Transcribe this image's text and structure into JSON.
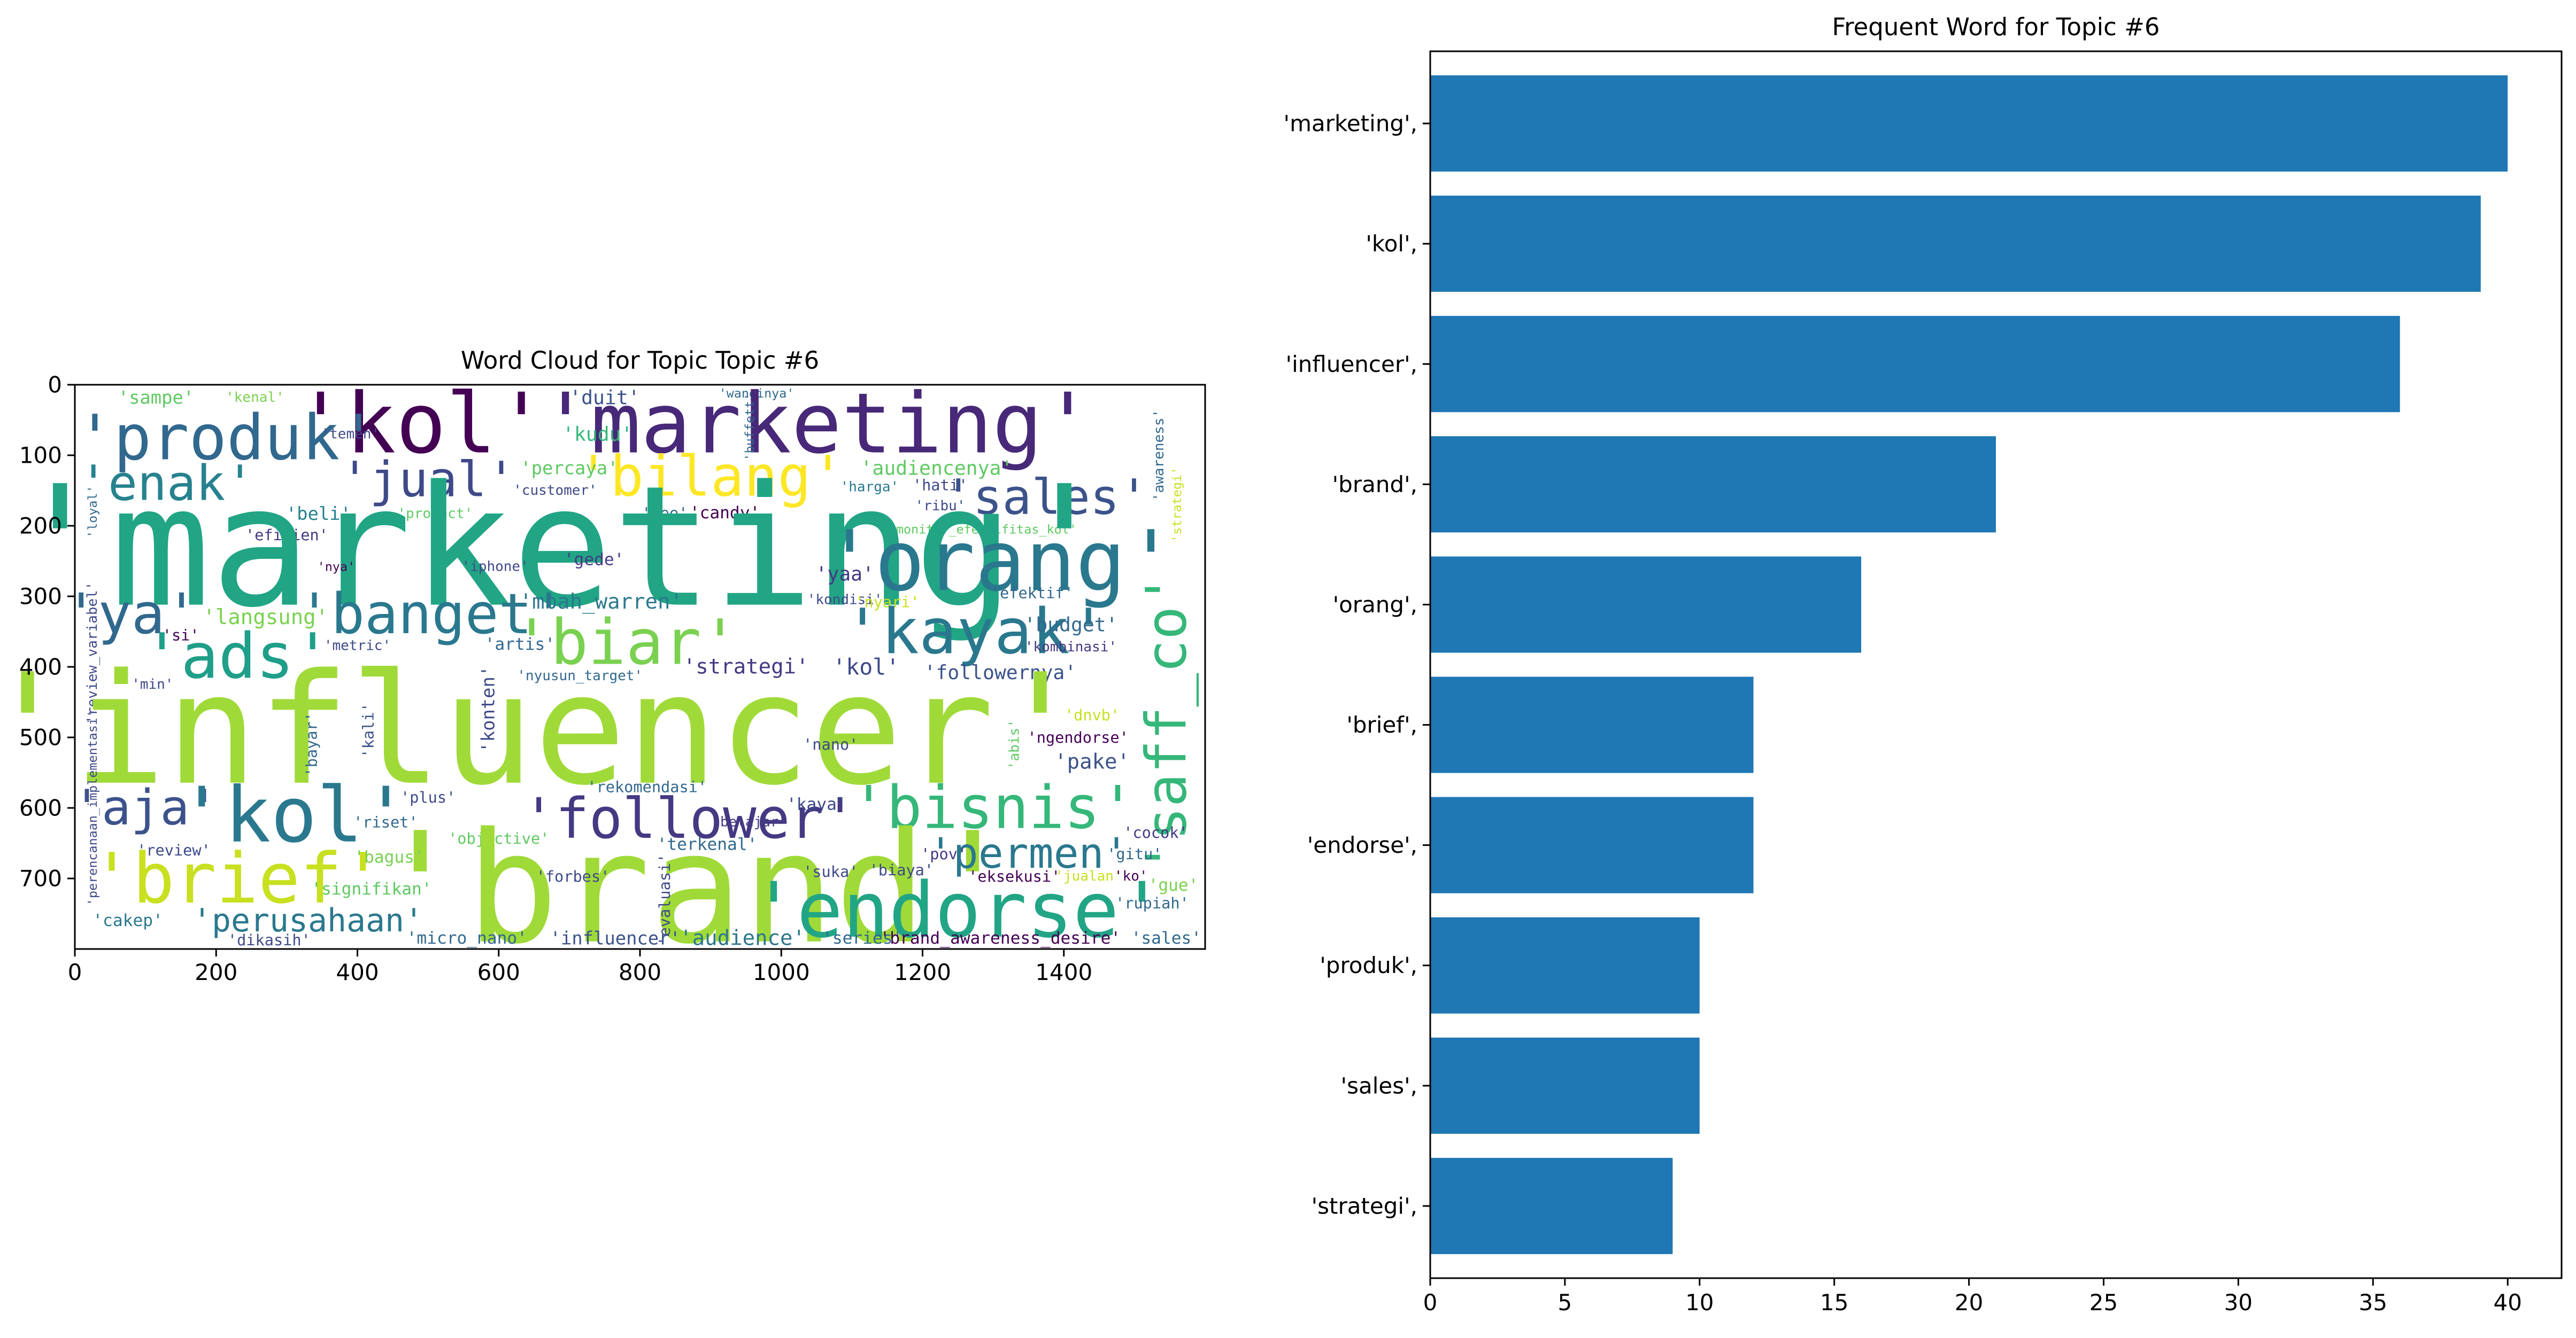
{
  "chart_data": [
    {
      "type": "image",
      "title": "Word Cloud for Topic Topic #6",
      "x_ticks": [
        0,
        200,
        400,
        600,
        800,
        1000,
        1200,
        1400
      ],
      "y_ticks": [
        0,
        100,
        200,
        300,
        400,
        500,
        600,
        700
      ],
      "xlim": [
        0,
        1600
      ],
      "ylim": [
        800,
        0
      ],
      "words": [
        {
          "text": "'sampe'",
          "x": 115,
          "y": 18,
          "size": 26,
          "color": "#5ec962",
          "rot": 0
        },
        {
          "text": "'kenal'",
          "x": 255,
          "y": 18,
          "size": 20,
          "color": "#7ad151",
          "rot": 0
        },
        {
          "text": "'duit'",
          "x": 750,
          "y": 18,
          "size": 28,
          "color": "#3b528b",
          "rot": 0
        },
        {
          "text": "'wanginya'",
          "x": 965,
          "y": 12,
          "size": 18,
          "color": "#31688e",
          "rot": 0
        },
        {
          "text": "'kol'",
          "x": 490,
          "y": 55,
          "size": 120,
          "color": "#440154",
          "rot": 0
        },
        {
          "text": "'marketing'",
          "x": 1050,
          "y": 55,
          "size": 120,
          "color": "#482878",
          "rot": 0
        },
        {
          "text": "'produk'",
          "x": 215,
          "y": 75,
          "size": 90,
          "color": "#31688e",
          "rot": 0
        },
        {
          "text": "'temen'",
          "x": 390,
          "y": 70,
          "size": 20,
          "color": "#3e4989",
          "rot": 0
        },
        {
          "text": "'kudu'",
          "x": 740,
          "y": 70,
          "size": 28,
          "color": "#35b779",
          "rot": 0
        },
        {
          "text": "'buffett'",
          "x": 955,
          "y": 60,
          "size": 18,
          "color": "#31688e",
          "rot": 90
        },
        {
          "text": "'awareness'",
          "x": 1535,
          "y": 100,
          "size": 20,
          "color": "#31688e",
          "rot": 90
        },
        {
          "text": "'strategi'",
          "x": 1560,
          "y": 170,
          "size": 18,
          "color": "#c8e020",
          "rot": 90
        },
        {
          "text": "'enak'",
          "x": 130,
          "y": 140,
          "size": 70,
          "color": "#26828e",
          "rot": 0
        },
        {
          "text": "'jual'",
          "x": 500,
          "y": 135,
          "size": 70,
          "color": "#3e4989",
          "rot": 0
        },
        {
          "text": "'bilang'",
          "x": 900,
          "y": 130,
          "size": 80,
          "color": "#fde725",
          "rot": 0
        },
        {
          "text": "'percaya'",
          "x": 700,
          "y": 118,
          "size": 26,
          "color": "#5ec962",
          "rot": 0
        },
        {
          "text": "'audiencenya'",
          "x": 1220,
          "y": 118,
          "size": 28,
          "color": "#5ec962",
          "rot": 0
        },
        {
          "text": "'sales'",
          "x": 1375,
          "y": 160,
          "size": 70,
          "color": "#3b528b",
          "rot": 0
        },
        {
          "text": "'harga'",
          "x": 1125,
          "y": 145,
          "size": 20,
          "color": "#2a788e",
          "rot": 0
        },
        {
          "text": "'hati'",
          "x": 1225,
          "y": 142,
          "size": 22,
          "color": "#3e4989",
          "rot": 0
        },
        {
          "text": "'customer'",
          "x": 680,
          "y": 150,
          "size": 20,
          "color": "#3e4989",
          "rot": 0
        },
        {
          "text": "'beli'",
          "x": 345,
          "y": 183,
          "size": 26,
          "color": "#26828e",
          "rot": 0
        },
        {
          "text": "'efisien'",
          "x": 300,
          "y": 213,
          "size": 22,
          "color": "#443983",
          "rot": 0
        },
        {
          "text": "'ribu'",
          "x": 1225,
          "y": 172,
          "size": 20,
          "color": "#3e4989",
          "rot": 0
        },
        {
          "text": "'see'",
          "x": 835,
          "y": 182,
          "size": 22,
          "color": "#31688e",
          "rot": 0
        },
        {
          "text": "'candy'",
          "x": 920,
          "y": 182,
          "size": 24,
          "color": "#440154",
          "rot": 0
        },
        {
          "text": "'product'",
          "x": 510,
          "y": 183,
          "size": 20,
          "color": "#5ec962",
          "rot": 0
        },
        {
          "text": "'loyal'",
          "x": 25,
          "y": 180,
          "size": 18,
          "color": "#31688e",
          "rot": 90
        },
        {
          "text": "'monitor_efektifitas_kol'",
          "x": 1285,
          "y": 205,
          "size": 18,
          "color": "#5ec962",
          "rot": 0
        },
        {
          "text": "'marketing'",
          "x": 690,
          "y": 230,
          "size": 240,
          "color": "#21a585",
          "rot": 0
        },
        {
          "text": "'orang'",
          "x": 1310,
          "y": 250,
          "size": 120,
          "color": "#2a788e",
          "rot": 0
        },
        {
          "text": "'gede'",
          "x": 735,
          "y": 248,
          "size": 24,
          "color": "#443983",
          "rot": 0
        },
        {
          "text": "'iphone'",
          "x": 595,
          "y": 258,
          "size": 20,
          "color": "#3e4989",
          "rot": 0
        },
        {
          "text": "'nya'",
          "x": 370,
          "y": 258,
          "size": 18,
          "color": "#440154",
          "rot": 0
        },
        {
          "text": "'yaa'",
          "x": 1090,
          "y": 268,
          "size": 28,
          "color": "#443983",
          "rot": 0
        },
        {
          "text": "'kondisi'",
          "x": 1090,
          "y": 305,
          "size": 20,
          "color": "#3e4989",
          "rot": 0
        },
        {
          "text": "'nyari'",
          "x": 1150,
          "y": 308,
          "size": 22,
          "color": "#c8e020",
          "rot": 0
        },
        {
          "text": "'efektif'",
          "x": 1355,
          "y": 295,
          "size": 22,
          "color": "#31688e",
          "rot": 0
        },
        {
          "text": "'ya'",
          "x": 80,
          "y": 325,
          "size": 80,
          "color": "#31688e",
          "rot": 0
        },
        {
          "text": "'banget'",
          "x": 505,
          "y": 325,
          "size": 80,
          "color": "#2a788e",
          "rot": 0
        },
        {
          "text": "'mbah_warren'",
          "x": 745,
          "y": 308,
          "size": 30,
          "color": "#2a788e",
          "rot": 0
        },
        {
          "text": "'langsung'",
          "x": 270,
          "y": 330,
          "size": 30,
          "color": "#7ad151",
          "rot": 0
        },
        {
          "text": "'biar'",
          "x": 780,
          "y": 365,
          "size": 90,
          "color": "#7ad151",
          "rot": 0
        },
        {
          "text": "'kayak'",
          "x": 1275,
          "y": 350,
          "size": 90,
          "color": "#2a788e",
          "rot": 0
        },
        {
          "text": "'budget'",
          "x": 1410,
          "y": 340,
          "size": 28,
          "color": "#31688e",
          "rot": 0
        },
        {
          "text": "'si'",
          "x": 150,
          "y": 355,
          "size": 22,
          "color": "#440154",
          "rot": 0
        },
        {
          "text": "'ads'",
          "x": 230,
          "y": 385,
          "size": 90,
          "color": "#1f9e89",
          "rot": 0
        },
        {
          "text": "'metric'",
          "x": 400,
          "y": 370,
          "size": 20,
          "color": "#3e4989",
          "rot": 0
        },
        {
          "text": "'artis'",
          "x": 630,
          "y": 368,
          "size": 24,
          "color": "#31688e",
          "rot": 0
        },
        {
          "text": "'kombinasi'",
          "x": 1410,
          "y": 372,
          "size": 20,
          "color": "#443983",
          "rot": 0
        },
        {
          "text": "'strategi'",
          "x": 950,
          "y": 400,
          "size": 30,
          "color": "#443983",
          "rot": 0
        },
        {
          "text": "'kol'",
          "x": 1120,
          "y": 400,
          "size": 32,
          "color": "#3e4989",
          "rot": 0
        },
        {
          "text": "'followernya'",
          "x": 1310,
          "y": 408,
          "size": 28,
          "color": "#3b528b",
          "rot": 0
        },
        {
          "text": "'saff_co'",
          "x": 1545,
          "y": 480,
          "size": 80,
          "color": "#35b779",
          "rot": 90
        },
        {
          "text": "'nyusun_target'",
          "x": 715,
          "y": 413,
          "size": 20,
          "color": "#31688e",
          "rot": 0
        },
        {
          "text": "'min'",
          "x": 110,
          "y": 425,
          "size": 20,
          "color": "#3e4989",
          "rot": 0
        },
        {
          "text": "'review_variabel'",
          "x": 25,
          "y": 380,
          "size": 20,
          "color": "#3e4989",
          "rot": 90
        },
        {
          "text": "'influencer'",
          "x": 650,
          "y": 490,
          "size": 220,
          "color": "#a0da39",
          "rot": 0
        },
        {
          "text": "'dnvb'",
          "x": 1440,
          "y": 468,
          "size": 22,
          "color": "#c8e020",
          "rot": 0
        },
        {
          "text": "'konten'",
          "x": 585,
          "y": 460,
          "size": 26,
          "color": "#3e4989",
          "rot": 90
        },
        {
          "text": "'kali'",
          "x": 415,
          "y": 490,
          "size": 22,
          "color": "#3b528b",
          "rot": 90
        },
        {
          "text": "'bayar'",
          "x": 335,
          "y": 510,
          "size": 22,
          "color": "#31688e",
          "rot": 90
        },
        {
          "text": "'perencanaan_implementasi'",
          "x": 25,
          "y": 600,
          "size": 18,
          "color": "#3e4989",
          "rot": 90
        },
        {
          "text": "'abis'",
          "x": 1330,
          "y": 510,
          "size": 20,
          "color": "#5ec962",
          "rot": 90
        },
        {
          "text": "'ngendorse'",
          "x": 1420,
          "y": 500,
          "size": 22,
          "color": "#440154",
          "rot": 0
        },
        {
          "text": "'nano'",
          "x": 1070,
          "y": 510,
          "size": 22,
          "color": "#3e4989",
          "rot": 0
        },
        {
          "text": "'pake'",
          "x": 1440,
          "y": 535,
          "size": 30,
          "color": "#3b528b",
          "rot": 0
        },
        {
          "text": "'aja'",
          "x": 100,
          "y": 600,
          "size": 70,
          "color": "#3b528b",
          "rot": 0
        },
        {
          "text": "'kol'",
          "x": 310,
          "y": 610,
          "size": 110,
          "color": "#2a788e",
          "rot": 0
        },
        {
          "text": "'follower'",
          "x": 870,
          "y": 615,
          "size": 80,
          "color": "#443983",
          "rot": 0
        },
        {
          "text": "'bisnis'",
          "x": 1300,
          "y": 600,
          "size": 85,
          "color": "#35b779",
          "rot": 0
        },
        {
          "text": "'kaya'",
          "x": 1050,
          "y": 595,
          "size": 24,
          "color": "#3e4989",
          "rot": 0
        },
        {
          "text": "'plus'",
          "x": 500,
          "y": 585,
          "size": 22,
          "color": "#3e4989",
          "rot": 0
        },
        {
          "text": "'riset'",
          "x": 440,
          "y": 620,
          "size": 22,
          "color": "#31688e",
          "rot": 0
        },
        {
          "text": "'rekomendasi'",
          "x": 810,
          "y": 570,
          "size": 22,
          "color": "#31688e",
          "rot": 0
        },
        {
          "text": "'belajar'",
          "x": 955,
          "y": 620,
          "size": 20,
          "color": "#443983",
          "rot": 0
        },
        {
          "text": "'objective'",
          "x": 600,
          "y": 643,
          "size": 22,
          "color": "#5ec962",
          "rot": 0
        },
        {
          "text": "'terkenal'",
          "x": 895,
          "y": 652,
          "size": 24,
          "color": "#31688e",
          "rot": 0
        },
        {
          "text": "'brand'",
          "x": 880,
          "y": 715,
          "size": 220,
          "color": "#a0da39",
          "rot": 0
        },
        {
          "text": "'brief'",
          "x": 230,
          "y": 700,
          "size": 100,
          "color": "#c8e020",
          "rot": 0
        },
        {
          "text": "'bagus'",
          "x": 445,
          "y": 670,
          "size": 24,
          "color": "#7ad151",
          "rot": 0
        },
        {
          "text": "'review'",
          "x": 140,
          "y": 660,
          "size": 22,
          "color": "#3e4989",
          "rot": 0
        },
        {
          "text": "'permen'",
          "x": 1350,
          "y": 665,
          "size": 60,
          "color": "#2a788e",
          "rot": 0
        },
        {
          "text": "'cocok'",
          "x": 1530,
          "y": 635,
          "size": 22,
          "color": "#443983",
          "rot": 0
        },
        {
          "text": "'gitu'",
          "x": 1500,
          "y": 665,
          "size": 22,
          "color": "#31688e",
          "rot": 0
        },
        {
          "text": "'pov'",
          "x": 1230,
          "y": 665,
          "size": 22,
          "color": "#443983",
          "rot": 0
        },
        {
          "text": "'suka'",
          "x": 1070,
          "y": 690,
          "size": 22,
          "color": "#3e4989",
          "rot": 0
        },
        {
          "text": "'biaya'",
          "x": 1170,
          "y": 688,
          "size": 22,
          "color": "#3e4989",
          "rot": 0
        },
        {
          "text": "'forbes'",
          "x": 705,
          "y": 697,
          "size": 22,
          "color": "#3e4989",
          "rot": 0
        },
        {
          "text": "'eksekusi'",
          "x": 1330,
          "y": 697,
          "size": 22,
          "color": "#440154",
          "rot": 0
        },
        {
          "text": "'jualan'",
          "x": 1435,
          "y": 697,
          "size": 20,
          "color": "#c8e020",
          "rot": 0
        },
        {
          "text": "'ko'",
          "x": 1495,
          "y": 697,
          "size": 20,
          "color": "#440154",
          "rot": 0
        },
        {
          "text": "'endorse'",
          "x": 1250,
          "y": 745,
          "size": 110,
          "color": "#21a585",
          "rot": 0
        },
        {
          "text": "'gue'",
          "x": 1555,
          "y": 710,
          "size": 24,
          "color": "#7ad151",
          "rot": 0
        },
        {
          "text": "'rupiah'",
          "x": 1525,
          "y": 735,
          "size": 22,
          "color": "#31688e",
          "rot": 0
        },
        {
          "text": "'signifikan'",
          "x": 420,
          "y": 715,
          "size": 24,
          "color": "#5ec962",
          "rot": 0
        },
        {
          "text": "'evaluasi'",
          "x": 835,
          "y": 730,
          "size": 22,
          "color": "#3e4989",
          "rot": 90
        },
        {
          "text": "'perusahaan'",
          "x": 330,
          "y": 760,
          "size": 46,
          "color": "#2a788e",
          "rot": 0
        },
        {
          "text": "'cakep'",
          "x": 75,
          "y": 760,
          "size": 24,
          "color": "#2a788e",
          "rot": 0
        },
        {
          "text": "'micro_nano'",
          "x": 555,
          "y": 785,
          "size": 24,
          "color": "#31688e",
          "rot": 0
        },
        {
          "text": "'influencer'",
          "x": 765,
          "y": 785,
          "size": 26,
          "color": "#3b528b",
          "rot": 0
        },
        {
          "text": "'audience'",
          "x": 945,
          "y": 785,
          "size": 30,
          "color": "#2a788e",
          "rot": 0
        },
        {
          "text": "'series'",
          "x": 1115,
          "y": 785,
          "size": 24,
          "color": "#31688e",
          "rot": 0
        },
        {
          "text": "'brand_awareness_desire'",
          "x": 1310,
          "y": 785,
          "size": 24,
          "color": "#440154",
          "rot": 0
        },
        {
          "text": "'sales'",
          "x": 1545,
          "y": 785,
          "size": 24,
          "color": "#31688e",
          "rot": 0
        },
        {
          "text": "'dikasih'",
          "x": 275,
          "y": 787,
          "size": 22,
          "color": "#3e4989",
          "rot": 0
        }
      ]
    },
    {
      "type": "bar",
      "orientation": "horizontal",
      "title": "Frequent Word for Topic #6",
      "categories": [
        "'marketing',",
        "'kol',",
        "'influencer',",
        "'brand',",
        "'orang',",
        "'brief',",
        "'endorse',",
        "'produk',",
        "'sales',",
        "'strategi',"
      ],
      "values": [
        40,
        39,
        36,
        21,
        16,
        12,
        12,
        10,
        10,
        9
      ],
      "color": "#1f77b4",
      "x_ticks": [
        0,
        5,
        10,
        15,
        20,
        25,
        30,
        35,
        40
      ],
      "xlim": [
        0,
        42
      ]
    }
  ]
}
